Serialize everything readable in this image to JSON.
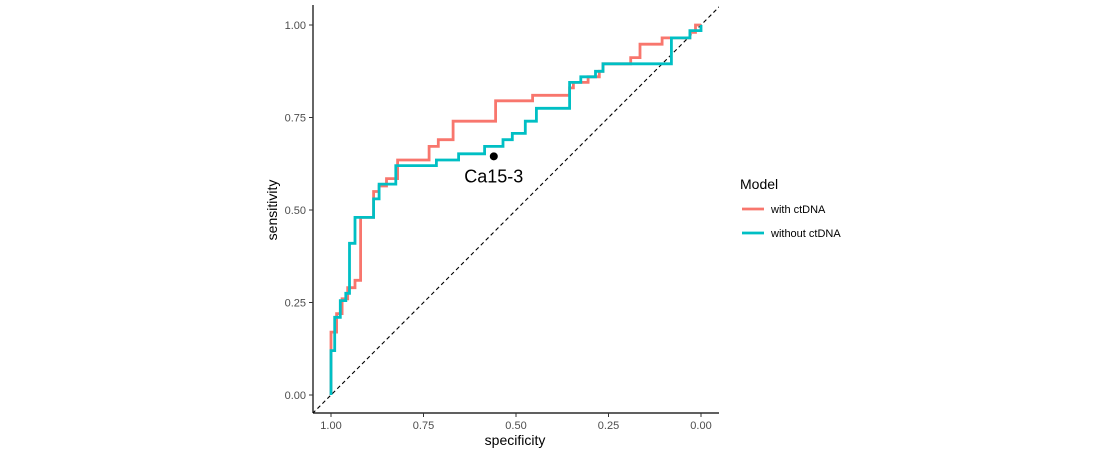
{
  "chart_data": {
    "type": "line",
    "xlabel": "specificity",
    "ylabel": "sensitivity",
    "xlim": [
      1.0,
      0.0
    ],
    "ylim": [
      0.0,
      1.0
    ],
    "x_reversed": true,
    "x_ticks": [
      {
        "value": 1.0,
        "label": "1.00"
      },
      {
        "value": 0.75,
        "label": "0.75"
      },
      {
        "value": 0.5,
        "label": "0.50"
      },
      {
        "value": 0.25,
        "label": "0.25"
      },
      {
        "value": 0.0,
        "label": "0.00"
      }
    ],
    "y_ticks": [
      {
        "value": 0.0,
        "label": "0.00"
      },
      {
        "value": 0.25,
        "label": "0.25"
      },
      {
        "value": 0.5,
        "label": "0.50"
      },
      {
        "value": 0.75,
        "label": "0.75"
      },
      {
        "value": 1.0,
        "label": "1.00"
      }
    ],
    "grid": false,
    "legend": {
      "title": "Model",
      "position": "right"
    },
    "reference_line": {
      "style": "dashed",
      "color": "#000000",
      "from": [
        1.0,
        0.0
      ],
      "to": [
        0.0,
        1.0
      ]
    },
    "series": [
      {
        "name": "with ctDNA",
        "color": "#F8766D",
        "points": [
          [
            1.0,
            0.0
          ],
          [
            1.0,
            0.17
          ],
          [
            0.985,
            0.17
          ],
          [
            0.985,
            0.22
          ],
          [
            0.97,
            0.22
          ],
          [
            0.97,
            0.26
          ],
          [
            0.955,
            0.26
          ],
          [
            0.955,
            0.29
          ],
          [
            0.935,
            0.29
          ],
          [
            0.935,
            0.31
          ],
          [
            0.92,
            0.31
          ],
          [
            0.92,
            0.48
          ],
          [
            0.885,
            0.48
          ],
          [
            0.885,
            0.55
          ],
          [
            0.87,
            0.55
          ],
          [
            0.87,
            0.565
          ],
          [
            0.85,
            0.565
          ],
          [
            0.85,
            0.585
          ],
          [
            0.82,
            0.585
          ],
          [
            0.82,
            0.635
          ],
          [
            0.735,
            0.635
          ],
          [
            0.735,
            0.672
          ],
          [
            0.71,
            0.672
          ],
          [
            0.71,
            0.69
          ],
          [
            0.67,
            0.69
          ],
          [
            0.67,
            0.74
          ],
          [
            0.555,
            0.74
          ],
          [
            0.555,
            0.795
          ],
          [
            0.455,
            0.795
          ],
          [
            0.455,
            0.81
          ],
          [
            0.355,
            0.81
          ],
          [
            0.355,
            0.83
          ],
          [
            0.345,
            0.83
          ],
          [
            0.345,
            0.845
          ],
          [
            0.305,
            0.845
          ],
          [
            0.305,
            0.86
          ],
          [
            0.275,
            0.86
          ],
          [
            0.275,
            0.875
          ],
          [
            0.265,
            0.875
          ],
          [
            0.265,
            0.895
          ],
          [
            0.19,
            0.895
          ],
          [
            0.19,
            0.912
          ],
          [
            0.165,
            0.912
          ],
          [
            0.165,
            0.948
          ],
          [
            0.105,
            0.948
          ],
          [
            0.105,
            0.965
          ],
          [
            0.07,
            0.965
          ],
          [
            0.07,
            0.965
          ],
          [
            0.03,
            0.965
          ],
          [
            0.03,
            0.98
          ],
          [
            0.015,
            0.98
          ],
          [
            0.015,
            1.0
          ],
          [
            0.0,
            1.0
          ]
        ]
      },
      {
        "name": "without ctDNA",
        "color": "#00BFC4",
        "points": [
          [
            1.0,
            0.0
          ],
          [
            1.0,
            0.12
          ],
          [
            0.99,
            0.12
          ],
          [
            0.99,
            0.21
          ],
          [
            0.975,
            0.21
          ],
          [
            0.975,
            0.255
          ],
          [
            0.96,
            0.255
          ],
          [
            0.96,
            0.275
          ],
          [
            0.95,
            0.275
          ],
          [
            0.95,
            0.41
          ],
          [
            0.935,
            0.41
          ],
          [
            0.935,
            0.48
          ],
          [
            0.905,
            0.48
          ],
          [
            0.905,
            0.48
          ],
          [
            0.885,
            0.48
          ],
          [
            0.885,
            0.53
          ],
          [
            0.87,
            0.53
          ],
          [
            0.87,
            0.57
          ],
          [
            0.825,
            0.57
          ],
          [
            0.825,
            0.62
          ],
          [
            0.715,
            0.62
          ],
          [
            0.715,
            0.635
          ],
          [
            0.655,
            0.635
          ],
          [
            0.655,
            0.652
          ],
          [
            0.585,
            0.652
          ],
          [
            0.585,
            0.672
          ],
          [
            0.535,
            0.672
          ],
          [
            0.535,
            0.69
          ],
          [
            0.51,
            0.69
          ],
          [
            0.51,
            0.707
          ],
          [
            0.475,
            0.707
          ],
          [
            0.475,
            0.74
          ],
          [
            0.445,
            0.74
          ],
          [
            0.445,
            0.775
          ],
          [
            0.355,
            0.775
          ],
          [
            0.355,
            0.845
          ],
          [
            0.325,
            0.845
          ],
          [
            0.325,
            0.86
          ],
          [
            0.285,
            0.86
          ],
          [
            0.285,
            0.875
          ],
          [
            0.265,
            0.875
          ],
          [
            0.265,
            0.895
          ],
          [
            0.16,
            0.895
          ],
          [
            0.16,
            0.895
          ],
          [
            0.08,
            0.895
          ],
          [
            0.08,
            0.965
          ],
          [
            0.03,
            0.965
          ],
          [
            0.03,
            0.985
          ],
          [
            0.0,
            0.985
          ],
          [
            0.0,
            1.0
          ]
        ]
      }
    ],
    "annotations": [
      {
        "label": "Ca15-3",
        "x": 0.56,
        "y": 0.645,
        "marker": "point",
        "color": "#000000"
      }
    ]
  }
}
